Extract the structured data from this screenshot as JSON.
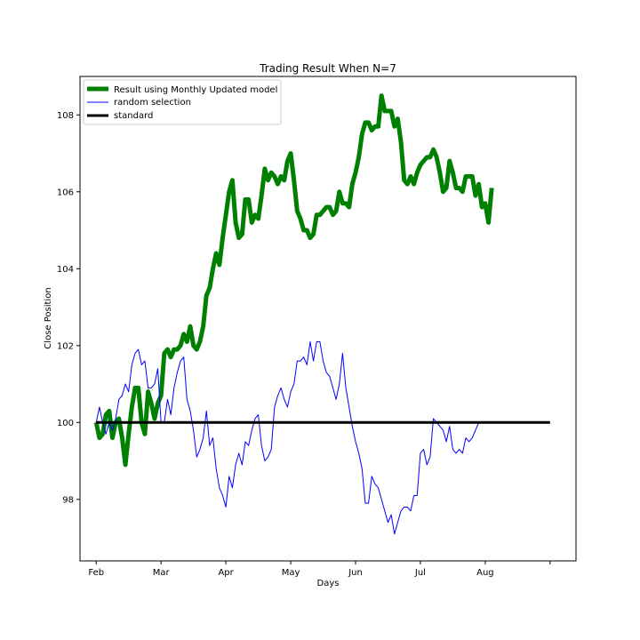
{
  "chart_data": {
    "type": "line",
    "title": "Trading Result When N=7",
    "xlabel": "Days",
    "ylabel": "Close Position",
    "xlim": [
      -5,
      148
    ],
    "ylim": [
      96.4,
      109.0
    ],
    "x_ticks": [
      {
        "x": 0,
        "label": "Feb"
      },
      {
        "x": 20,
        "label": "Mar"
      },
      {
        "x": 40,
        "label": "Apr"
      },
      {
        "x": 60,
        "label": "May"
      },
      {
        "x": 80,
        "label": "Jun"
      },
      {
        "x": 100,
        "label": "Jul"
      },
      {
        "x": 120,
        "label": "Aug"
      },
      {
        "x": 140,
        "label": ""
      }
    ],
    "y_ticks": [
      98,
      100,
      102,
      104,
      106,
      108
    ],
    "legend": "top-left",
    "grid": false,
    "series": [
      {
        "name": "Result using Monthly Updated model",
        "color": "#008000",
        "values": [
          [
            0,
            100.0
          ],
          [
            1,
            99.6
          ],
          [
            2,
            99.7
          ],
          [
            3,
            100.2
          ],
          [
            4,
            100.3
          ],
          [
            5,
            99.6
          ],
          [
            6,
            100.0
          ],
          [
            7,
            100.1
          ],
          [
            8,
            99.6
          ],
          [
            9,
            98.9
          ],
          [
            10,
            99.7
          ],
          [
            11,
            100.4
          ],
          [
            12,
            100.9
          ],
          [
            13,
            100.9
          ],
          [
            14,
            100.0
          ],
          [
            15,
            99.7
          ],
          [
            16,
            100.8
          ],
          [
            17,
            100.5
          ],
          [
            18,
            100.1
          ],
          [
            19,
            100.5
          ],
          [
            20,
            100.7
          ],
          [
            21,
            101.8
          ],
          [
            22,
            101.9
          ],
          [
            23,
            101.7
          ],
          [
            24,
            101.9
          ],
          [
            25,
            101.9
          ],
          [
            26,
            102.0
          ],
          [
            27,
            102.3
          ],
          [
            28,
            102.1
          ],
          [
            29,
            102.5
          ],
          [
            30,
            102.0
          ],
          [
            31,
            101.9
          ],
          [
            32,
            102.1
          ],
          [
            33,
            102.5
          ],
          [
            34,
            103.3
          ],
          [
            35,
            103.5
          ],
          [
            36,
            104.0
          ],
          [
            37,
            104.4
          ],
          [
            38,
            104.1
          ],
          [
            39,
            104.8
          ],
          [
            40,
            105.4
          ],
          [
            41,
            106.0
          ],
          [
            42,
            106.3
          ],
          [
            43,
            105.2
          ],
          [
            44,
            104.8
          ],
          [
            45,
            104.9
          ],
          [
            46,
            105.8
          ],
          [
            47,
            105.8
          ],
          [
            48,
            105.2
          ],
          [
            49,
            105.4
          ],
          [
            50,
            105.3
          ],
          [
            51,
            105.9
          ],
          [
            52,
            106.6
          ],
          [
            53,
            106.3
          ],
          [
            54,
            106.5
          ],
          [
            55,
            106.4
          ],
          [
            56,
            106.2
          ],
          [
            57,
            106.4
          ],
          [
            58,
            106.3
          ],
          [
            59,
            106.8
          ],
          [
            60,
            107.0
          ],
          [
            61,
            106.3
          ],
          [
            62,
            105.5
          ],
          [
            63,
            105.3
          ],
          [
            64,
            105.0
          ],
          [
            65,
            105.0
          ],
          [
            66,
            104.8
          ],
          [
            67,
            104.9
          ],
          [
            68,
            105.4
          ],
          [
            69,
            105.4
          ],
          [
            70,
            105.5
          ],
          [
            71,
            105.6
          ],
          [
            72,
            105.6
          ],
          [
            73,
            105.4
          ],
          [
            74,
            105.5
          ],
          [
            75,
            106.0
          ],
          [
            76,
            105.7
          ],
          [
            77,
            105.7
          ],
          [
            78,
            105.6
          ],
          [
            79,
            106.2
          ],
          [
            80,
            106.5
          ],
          [
            81,
            106.9
          ],
          [
            82,
            107.5
          ],
          [
            83,
            107.8
          ],
          [
            84,
            107.8
          ],
          [
            85,
            107.6
          ],
          [
            86,
            107.7
          ],
          [
            87,
            107.7
          ],
          [
            88,
            108.5
          ],
          [
            89,
            108.1
          ],
          [
            90,
            108.1
          ],
          [
            91,
            108.1
          ],
          [
            92,
            107.7
          ],
          [
            93,
            107.9
          ],
          [
            94,
            107.3
          ],
          [
            95,
            106.3
          ],
          [
            96,
            106.2
          ],
          [
            97,
            106.4
          ],
          [
            98,
            106.2
          ],
          [
            99,
            106.5
          ],
          [
            100,
            106.7
          ],
          [
            101,
            106.8
          ],
          [
            102,
            106.9
          ],
          [
            103,
            106.9
          ],
          [
            104,
            107.1
          ],
          [
            105,
            106.9
          ],
          [
            106,
            106.5
          ],
          [
            107,
            106.0
          ],
          [
            108,
            106.1
          ],
          [
            109,
            106.8
          ],
          [
            110,
            106.5
          ],
          [
            111,
            106.1
          ],
          [
            112,
            106.1
          ],
          [
            113,
            106.0
          ],
          [
            114,
            106.4
          ],
          [
            115,
            106.4
          ],
          [
            116,
            106.4
          ],
          [
            117,
            105.9
          ],
          [
            118,
            106.2
          ],
          [
            119,
            105.6
          ],
          [
            120,
            105.7
          ],
          [
            121,
            105.2
          ],
          [
            122,
            106.1
          ]
        ]
      },
      {
        "name": "random selection",
        "color": "#0000ff",
        "values": [
          [
            0,
            100.0
          ],
          [
            1,
            100.4
          ],
          [
            2,
            100.0
          ],
          [
            3,
            99.7
          ],
          [
            4,
            100.0
          ],
          [
            5,
            99.8
          ],
          [
            6,
            100.1
          ],
          [
            7,
            100.6
          ],
          [
            8,
            100.7
          ],
          [
            9,
            101.0
          ],
          [
            10,
            100.8
          ],
          [
            11,
            101.5
          ],
          [
            12,
            101.8
          ],
          [
            13,
            101.9
          ],
          [
            14,
            101.5
          ],
          [
            15,
            101.6
          ],
          [
            16,
            100.9
          ],
          [
            17,
            100.9
          ],
          [
            18,
            101.0
          ],
          [
            19,
            101.4
          ],
          [
            20,
            100.0
          ],
          [
            21,
            100.0
          ],
          [
            22,
            100.6
          ],
          [
            23,
            100.2
          ],
          [
            24,
            100.9
          ],
          [
            25,
            101.3
          ],
          [
            26,
            101.6
          ],
          [
            27,
            101.7
          ],
          [
            28,
            100.6
          ],
          [
            29,
            100.3
          ],
          [
            30,
            99.8
          ],
          [
            31,
            99.1
          ],
          [
            32,
            99.3
          ],
          [
            33,
            99.6
          ],
          [
            34,
            100.3
          ],
          [
            35,
            99.4
          ],
          [
            36,
            99.6
          ],
          [
            37,
            98.8
          ],
          [
            38,
            98.3
          ],
          [
            39,
            98.1
          ],
          [
            40,
            97.8
          ],
          [
            41,
            98.6
          ],
          [
            42,
            98.3
          ],
          [
            43,
            98.9
          ],
          [
            44,
            99.2
          ],
          [
            45,
            98.9
          ],
          [
            46,
            99.5
          ],
          [
            47,
            99.4
          ],
          [
            48,
            99.8
          ],
          [
            49,
            100.1
          ],
          [
            50,
            100.2
          ],
          [
            51,
            99.4
          ],
          [
            52,
            99.0
          ],
          [
            53,
            99.1
          ],
          [
            54,
            99.3
          ],
          [
            55,
            100.4
          ],
          [
            56,
            100.7
          ],
          [
            57,
            100.9
          ],
          [
            58,
            100.6
          ],
          [
            59,
            100.4
          ],
          [
            60,
            100.8
          ],
          [
            61,
            101.0
          ],
          [
            62,
            101.6
          ],
          [
            63,
            101.6
          ],
          [
            64,
            101.7
          ],
          [
            65,
            101.5
          ],
          [
            66,
            102.1
          ],
          [
            67,
            101.6
          ],
          [
            68,
            102.1
          ],
          [
            69,
            102.1
          ],
          [
            70,
            101.6
          ],
          [
            71,
            101.3
          ],
          [
            72,
            101.2
          ],
          [
            73,
            100.9
          ],
          [
            74,
            100.6
          ],
          [
            75,
            101.0
          ],
          [
            76,
            101.8
          ],
          [
            77,
            100.9
          ],
          [
            78,
            100.4
          ],
          [
            79,
            99.9
          ],
          [
            80,
            99.5
          ],
          [
            81,
            99.2
          ],
          [
            82,
            98.8
          ],
          [
            83,
            97.9
          ],
          [
            84,
            97.9
          ],
          [
            85,
            98.6
          ],
          [
            86,
            98.4
          ],
          [
            87,
            98.3
          ],
          [
            88,
            98.0
          ],
          [
            89,
            97.7
          ],
          [
            90,
            97.4
          ],
          [
            91,
            97.6
          ],
          [
            92,
            97.1
          ],
          [
            93,
            97.4
          ],
          [
            94,
            97.7
          ],
          [
            95,
            97.8
          ],
          [
            96,
            97.8
          ],
          [
            97,
            97.7
          ],
          [
            98,
            98.1
          ],
          [
            99,
            98.1
          ],
          [
            100,
            99.2
          ],
          [
            101,
            99.3
          ],
          [
            102,
            98.9
          ],
          [
            103,
            99.1
          ],
          [
            104,
            100.1
          ],
          [
            105,
            100.0
          ],
          [
            106,
            99.9
          ],
          [
            107,
            99.8
          ],
          [
            108,
            99.5
          ],
          [
            109,
            99.9
          ],
          [
            110,
            99.3
          ],
          [
            111,
            99.2
          ],
          [
            112,
            99.3
          ],
          [
            113,
            99.2
          ],
          [
            114,
            99.6
          ],
          [
            115,
            99.5
          ],
          [
            116,
            99.6
          ],
          [
            117,
            99.8
          ],
          [
            118,
            100.0
          ]
        ]
      },
      {
        "name": "standard",
        "color": "#000000",
        "values": [
          [
            0,
            100.0
          ],
          [
            140,
            100.0
          ]
        ]
      }
    ]
  }
}
